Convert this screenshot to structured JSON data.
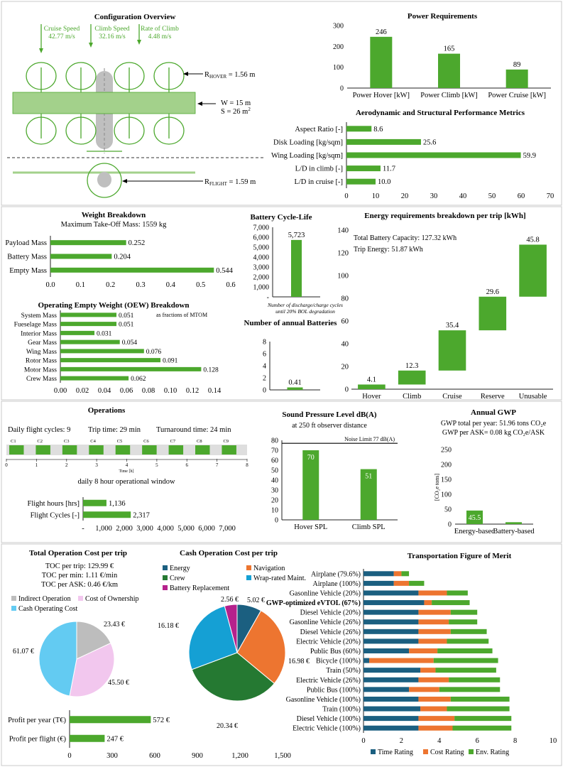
{
  "colors": {
    "green": "#4ca82d",
    "light_green": "#a3d18b",
    "grey": "#bfbfbf",
    "navy": "#1b5f80",
    "orange": "#ed7530",
    "dark_green": "#257932",
    "blue": "#15a0d4",
    "magenta": "#b5218c",
    "pink": "#f2c7ee",
    "sky": "#63cbf2",
    "silver": "#bdbdbd"
  },
  "config": {
    "title": "Configuration Overview",
    "cruise_label": "Cruise Speed",
    "cruise_value": "42.77 m/s",
    "climb_label": "Climb Speed",
    "climb_value": "32.16 m/s",
    "roc_label": "Rate of Climb",
    "roc_value": "4.48 m/s",
    "r_hover_prefix": "R",
    "r_hover_sub": "HOVER",
    "r_hover_value": " = 1.56 m",
    "w_value": "W = 15 m",
    "s_value": "S = 26 m",
    "s_sup": "2",
    "r_flight_prefix": "R",
    "r_flight_sub": "FLIGHT",
    "r_flight_value": " = 1.59 m"
  },
  "operations": {
    "title": "Operations",
    "daily_cycles": "Daily flight cycles: 9",
    "trip_time": "Trip time: 29 min",
    "turnaround": "Turnaround time: 24 min",
    "cycles": [
      "C1",
      "C2",
      "C3",
      "C4",
      "C5",
      "C6",
      "C7",
      "C8",
      "C9"
    ],
    "hours": [
      "0",
      "1",
      "2",
      "3",
      "4",
      "5",
      "6",
      "7",
      "8"
    ],
    "time_axis": "Time [h]",
    "window": "daily 8 hour operational window"
  },
  "toc": {
    "title": "Total Operation Cost per trip",
    "per_trip": "TOC per trip: 129.99 €",
    "per_min": "TOC per min: 1.11 €/min",
    "per_ask": "TOC per ASK: 0.46 €/km"
  },
  "gwp": {
    "title": "Annual GWP",
    "total": "GWP total per year: 51.96 tons CO₂e",
    "per_ask": "GWP per ASK= 0.08 kg CO₂e/ASK"
  },
  "chart_data": [
    {
      "type": "bar",
      "title": "Power Requirements",
      "categories": [
        "Power Hover [kW]",
        "Power Climb [kW]",
        "Power Cruise [kW]"
      ],
      "values": [
        246,
        165,
        89
      ],
      "ylim": [
        0,
        300
      ],
      "yticks": [
        0,
        100,
        200,
        300
      ],
      "grid": false
    },
    {
      "type": "bar",
      "orientation": "horizontal",
      "title": "Aerodynamic and Structural Performance Metrics",
      "categories": [
        "Aspect Ratio [-]",
        "Disk Loading [kg/sqm]",
        "Wing Loading [kg/sqm]",
        "L/D in climb [-]",
        "L/D in cruise [-]"
      ],
      "values": [
        8.6,
        25.6,
        59.9,
        11.7,
        10.0
      ],
      "labels": [
        "8.6",
        "25.6",
        "59.9",
        "11.7",
        "10.0"
      ],
      "xlim": [
        0,
        70
      ],
      "xticks": [
        0,
        10,
        20,
        30,
        40,
        50,
        60,
        70
      ]
    },
    {
      "type": "bar",
      "orientation": "horizontal",
      "title": "Weight Breakdown",
      "subtitle": "Maximum Take-Off Mass: 1559 kg",
      "categories": [
        "Payload Mass",
        "Battery Mass",
        "Empty Mass"
      ],
      "values": [
        0.252,
        0.204,
        0.544
      ],
      "labels": [
        "0.252",
        "0.204",
        "0.544"
      ],
      "xlim": [
        0,
        0.6
      ],
      "xticks": [
        "0.0",
        "0.1",
        "0.2",
        "0.3",
        "0.4",
        "0.5",
        "0.6"
      ]
    },
    {
      "type": "bar",
      "orientation": "horizontal",
      "title": "Operating Empty Weight (OEW) Breakdown",
      "annotation": "as fractions of MTOM",
      "categories": [
        "System Mass",
        "Fueselage Mass",
        "Interior Mass",
        "Gear Mass",
        "Wing Mass",
        "Rotor Mass",
        "Motor Mass",
        "Crew Mass"
      ],
      "values": [
        0.051,
        0.051,
        0.031,
        0.054,
        0.076,
        0.091,
        0.128,
        0.062
      ],
      "labels": [
        "0.051",
        "0.051",
        "0.031",
        "0.054",
        "0.076",
        "0.091",
        "0.128",
        "0.062"
      ],
      "xlim": [
        0,
        0.14
      ],
      "xticks": [
        "0.00",
        "0.02",
        "0.04",
        "0.06",
        "0.08",
        "0.10",
        "0.12",
        "0.14"
      ]
    },
    {
      "type": "bar",
      "title": "Battery Cycle-Life",
      "values": [
        5723
      ],
      "labels": [
        "5,723"
      ],
      "ylim": [
        0,
        7000
      ],
      "yticks": [
        "-",
        "1,000",
        "2,000",
        "3,000",
        "4,000",
        "5,000",
        "6,000",
        "7,000"
      ],
      "note": "Number of discharge/charge cycles until 20% BOL degradation"
    },
    {
      "type": "bar",
      "title": "Number of annual Batteries",
      "values": [
        0.41
      ],
      "labels": [
        "0.41"
      ],
      "ylim": [
        0,
        8
      ],
      "yticks": [
        "0",
        "2",
        "4",
        "6",
        "8"
      ]
    },
    {
      "type": "bar",
      "subtype": "waterfall",
      "title": "Energy requirements breakdown per trip [kWh]",
      "categories": [
        "Hover",
        "Climb",
        "Cruise",
        "Reserve",
        "Unusable"
      ],
      "values": [
        4.1,
        12.3,
        35.4,
        29.6,
        45.8
      ],
      "labels": [
        "4.1",
        "12.3",
        "35.4",
        "29.6",
        "45.8"
      ],
      "ylim": [
        0,
        140
      ],
      "yticks": [
        0,
        20,
        40,
        60,
        80,
        100,
        120,
        140
      ],
      "annotations": [
        "Total Battery Capacity: 127.32 kWh",
        "Trip Energy: 51.87 kWh"
      ]
    },
    {
      "type": "bar",
      "orientation": "horizontal",
      "categories": [
        "Flight hours [hrs]",
        "Flight Cycles [-]"
      ],
      "values": [
        1136,
        2317
      ],
      "labels": [
        "1,136",
        "2,317"
      ],
      "xlim": [
        0,
        7000
      ],
      "xticks": [
        "-",
        "1,000",
        "2,000",
        "3,000",
        "4,000",
        "5,000",
        "6,000",
        "7,000"
      ]
    },
    {
      "type": "bar",
      "title": "Sound Pressure Level dB(A)",
      "subtitle": "at 250 ft observer distance",
      "categories": [
        "Hover SPL",
        "Climb SPL"
      ],
      "values": [
        70,
        51
      ],
      "labels": [
        "70",
        "51"
      ],
      "ylim": [
        0,
        80
      ],
      "yticks": [
        0,
        10,
        20,
        30,
        40,
        50,
        60,
        70,
        80
      ],
      "reference": {
        "label": "Noise Limit 77 dB(A)",
        "value": 77
      }
    },
    {
      "type": "bar",
      "title": "Annual GWP",
      "categories": [
        "Energy-based",
        "Battery-based"
      ],
      "values": [
        45.5,
        6.4
      ],
      "labels": [
        "45.5",
        "6.4"
      ],
      "ylabel": "[CO₂e tons]",
      "ylim": [
        0,
        250
      ],
      "yticks": [
        0,
        50,
        100,
        150,
        200,
        250
      ]
    },
    {
      "type": "pie",
      "title": "Total Operation Cost per trip",
      "legend": [
        "Indirect Operation",
        "Cost of Ownership",
        "Cash Operating Cost"
      ],
      "values": [
        23.43,
        45.5,
        61.07
      ],
      "labels": [
        "23.43 €",
        "45.50 €",
        "61.07 €"
      ]
    },
    {
      "type": "pie",
      "title": "Cash Operation Cost per trip",
      "legend": [
        "Energy",
        "Navigation",
        "Crew",
        "Wrap-rated Maint.",
        "Battery Replacement"
      ],
      "values": [
        5.02,
        16.98,
        20.34,
        16.18,
        2.56
      ],
      "labels": [
        "5.02 €",
        "16.98 €",
        "20.34 €",
        "16.18 €",
        "2.56 €"
      ]
    },
    {
      "type": "bar",
      "orientation": "horizontal",
      "categories": [
        "Profit per year (T€)",
        "Profit per flight (€)"
      ],
      "values": [
        572,
        247
      ],
      "labels": [
        "572 €",
        "247 €"
      ],
      "xlim": [
        0,
        1500
      ],
      "xticks": [
        "0",
        "300",
        "600",
        "900",
        "1,200",
        "1,500"
      ]
    },
    {
      "type": "bar",
      "orientation": "horizontal",
      "stacked": true,
      "title": "Transportation Figure of Merit",
      "categories": [
        "Airplane (79.6%)",
        "Airplane (100%)",
        "Gasonline Vehicle (20%)",
        "GWP-optimized eVTOL (67%)",
        "Diesel Vehicle (20%)",
        "Gasonline Vehicle (26%)",
        "Diesel Vehicle (26%)",
        "Electric Vehicle (20%)",
        "Public Bus (60%)",
        "Bicycle (100%)",
        "Train (50%)",
        "Electric Vehicle (26%)",
        "Public Bus (100%)",
        "Gasonline Vehicle (100%)",
        "Train (100%)",
        "Diesel Vehicle (100%)",
        "Electric Vehicle (100%)"
      ],
      "highlight": "GWP-optimized eVTOL (67%)",
      "series": [
        {
          "name": "Time Rating",
          "values": [
            1.6,
            1.6,
            2.9,
            3.2,
            2.9,
            2.9,
            2.9,
            2.9,
            2.4,
            0.3,
            3.0,
            2.9,
            2.4,
            2.9,
            3.0,
            2.9,
            2.9
          ]
        },
        {
          "name": "Cost Rating",
          "values": [
            0.4,
            0.8,
            1.5,
            0.4,
            1.7,
            1.6,
            1.7,
            1.5,
            1.5,
            3.4,
            0.8,
            1.6,
            1.6,
            1.7,
            1.4,
            1.9,
            1.8
          ]
        },
        {
          "name": "Env. Rating",
          "values": [
            0.4,
            0.8,
            1.1,
            2.0,
            1.4,
            1.5,
            1.9,
            2.2,
            2.9,
            3.4,
            3.2,
            2.7,
            3.2,
            3.1,
            3.3,
            3.0,
            3.1
          ]
        }
      ],
      "xlim": [
        0,
        10
      ],
      "xticks": [
        0,
        2,
        4,
        6,
        8,
        10
      ]
    }
  ]
}
